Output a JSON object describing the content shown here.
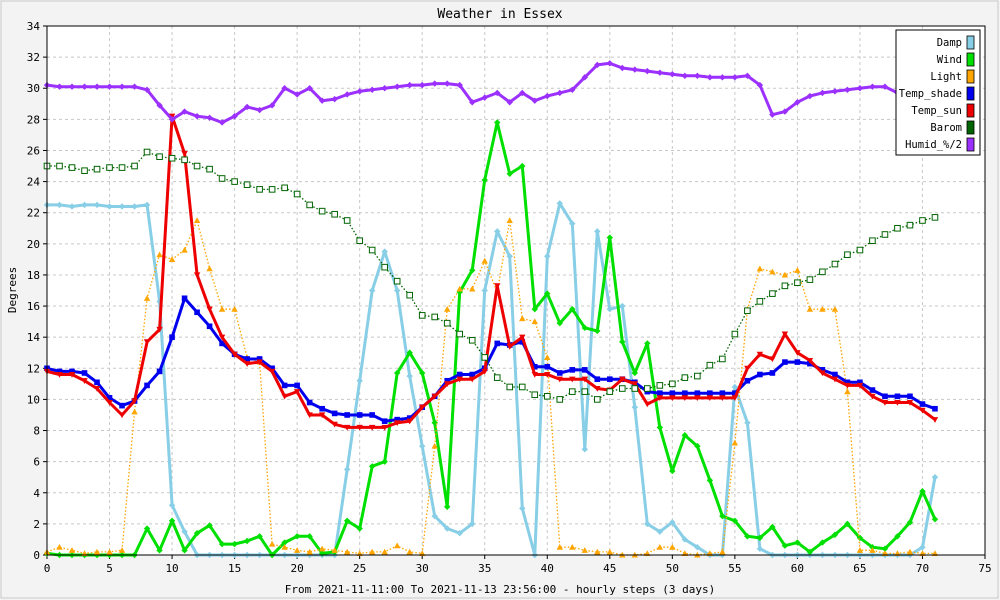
{
  "chart_data": {
    "type": "line",
    "title": "Weather in Essex",
    "xlabel": "From 2021-11-11:00 To 2021-11-13 23:56:00 - hourly steps (3 days)",
    "ylabel": "Degrees",
    "xlim": [
      0,
      75
    ],
    "ylim": [
      0,
      34
    ],
    "xticks": [
      0,
      5,
      10,
      15,
      20,
      25,
      30,
      35,
      40,
      45,
      50,
      55,
      60,
      65,
      70,
      75
    ],
    "yticks": [
      0,
      2,
      4,
      6,
      8,
      10,
      12,
      14,
      16,
      18,
      20,
      22,
      24,
      26,
      28,
      30,
      32,
      34
    ],
    "grid": true,
    "legend_position": "top-right",
    "series": [
      {
        "name": "Damp",
        "color": "#87cee6",
        "style": "solid",
        "marker": "diamond",
        "values": [
          22.5,
          22.5,
          22.4,
          22.5,
          22.5,
          22.4,
          22.4,
          22.4,
          22.5,
          16.3,
          3.2,
          1.5,
          0,
          0,
          0,
          0,
          0,
          0,
          0,
          0,
          0,
          0,
          0,
          0,
          5.5,
          11.2,
          17,
          19.5,
          17,
          11.5,
          7,
          2.5,
          1.7,
          1.4,
          2,
          17,
          20.8,
          19.2,
          3,
          0,
          19.2,
          22.6,
          21.3,
          6.8,
          20.8,
          15.8,
          16,
          9.5,
          2,
          1.5,
          2.1,
          1,
          0.5,
          0,
          0,
          10.8,
          8.5,
          0.4,
          0,
          0,
          0,
          0,
          0,
          0,
          0,
          0,
          0,
          0,
          0,
          0,
          0.5,
          5
        ]
      },
      {
        "name": "Wind",
        "color": "#00e000",
        "style": "solid",
        "marker": "diamond",
        "values": [
          0.1,
          0,
          0,
          0,
          0,
          0,
          0,
          0,
          1.7,
          0.3,
          2.2,
          0.3,
          1.4,
          1.9,
          0.7,
          0.7,
          0.9,
          1.2,
          0,
          0.8,
          1.2,
          1.2,
          0.1,
          0.2,
          2.2,
          1.7,
          5.7,
          6,
          11.7,
          13,
          11.7,
          8.5,
          3.1,
          16.9,
          18.3,
          24.1,
          27.8,
          24.5,
          25,
          15.8,
          16.8,
          14.9,
          15.8,
          14.6,
          14.4,
          20.4,
          13.7,
          11.7,
          13.6,
          8.2,
          5.4,
          7.7,
          7,
          4.8,
          2.5,
          2.2,
          1.2,
          1.1,
          1.8,
          0.6,
          0.8,
          0.2,
          0.8,
          1.3,
          2,
          1.1,
          0.5,
          0.4,
          1.2,
          2.1,
          4.1,
          2.3
        ]
      },
      {
        "name": "Light",
        "color": "#ffa500",
        "style": "dotted",
        "marker": "triangle",
        "values": [
          0.2,
          0.5,
          0.3,
          0.1,
          0.2,
          0.2,
          0.3,
          9.2,
          16.5,
          19.3,
          19,
          19.6,
          21.5,
          18.4,
          15.8,
          15.8,
          12.7,
          12.4,
          0.7,
          0.5,
          0.3,
          0.2,
          0.4,
          0.3,
          0.2,
          0.1,
          0.2,
          0.2,
          0.6,
          0.2,
          0.1,
          7,
          15.8,
          17.1,
          17.1,
          18.9,
          16.9,
          21.5,
          15.2,
          15,
          12.7,
          0.5,
          0.5,
          0.3,
          0.2,
          0.2,
          0,
          0,
          0.1,
          0.5,
          0.5,
          0.1,
          0,
          0.1,
          0.2,
          7.2,
          15.8,
          18.4,
          18.2,
          18,
          18.3,
          15.8,
          15.8,
          15.8,
          10.5,
          0.3,
          0.3,
          0.1,
          0.1,
          0.2,
          0.1,
          0.1
        ]
      },
      {
        "name": "Temp_shade",
        "color": "#0000ee",
        "style": "solid",
        "marker": "square",
        "values": [
          12,
          11.8,
          11.8,
          11.7,
          11.1,
          10.1,
          9.6,
          9.9,
          10.9,
          11.8,
          14,
          16.5,
          15.6,
          14.7,
          13.6,
          12.9,
          12.6,
          12.6,
          12,
          10.9,
          10.9,
          9.8,
          9.4,
          9.1,
          9,
          9,
          9,
          8.6,
          8.7,
          8.8,
          9.5,
          10.2,
          11.2,
          11.6,
          11.6,
          12,
          13.6,
          13.5,
          13.7,
          12.1,
          12.1,
          11.7,
          11.9,
          11.9,
          11.3,
          11.3,
          11.3,
          11.1,
          10.5,
          10.4,
          10.4,
          10.4,
          10.4,
          10.4,
          10.4,
          10.4,
          11.2,
          11.6,
          11.7,
          12.4,
          12.4,
          12.3,
          11.9,
          11.6,
          11.1,
          11.1,
          10.6,
          10.2,
          10.2,
          10.2,
          9.7,
          9.4
        ]
      },
      {
        "name": "Temp_sun",
        "color": "#ee0000",
        "style": "solid",
        "marker": "triangle-down",
        "values": [
          11.8,
          11.6,
          11.6,
          11.2,
          10.7,
          9.8,
          9,
          9.9,
          13.7,
          14.5,
          28.2,
          25.8,
          18,
          15.8,
          14,
          12.9,
          12.3,
          12.4,
          11.8,
          10.2,
          10.5,
          9,
          9,
          8.4,
          8.2,
          8.2,
          8.2,
          8.2,
          8.5,
          8.6,
          9.5,
          10.2,
          11,
          11.3,
          11.3,
          11.8,
          17.3,
          13.4,
          14,
          11.6,
          11.6,
          11.3,
          11.3,
          11.3,
          10.7,
          10.6,
          11.3,
          11,
          9.7,
          10.1,
          10.1,
          10.1,
          10.1,
          10.1,
          10.1,
          10.1,
          12,
          12.9,
          12.6,
          14.2,
          13,
          12.5,
          11.7,
          11.3,
          10.9,
          10.9,
          10.2,
          9.8,
          9.8,
          9.8,
          9.3,
          8.7
        ]
      },
      {
        "name": "Barom",
        "color": "#006400",
        "style": "dotted",
        "marker": "square-open",
        "values": [
          25,
          25,
          24.9,
          24.7,
          24.8,
          24.9,
          24.9,
          25,
          25.9,
          25.6,
          25.5,
          25.4,
          25,
          24.8,
          24.2,
          24,
          23.8,
          23.5,
          23.5,
          23.6,
          23.2,
          22.5,
          22.1,
          21.9,
          21.5,
          20.2,
          19.6,
          18.5,
          17.6,
          16.7,
          15.4,
          15.3,
          14.9,
          14.2,
          13.8,
          12.7,
          11.4,
          10.8,
          10.8,
          10.3,
          10.2,
          10,
          10.5,
          10.5,
          10,
          10.5,
          10.7,
          10.7,
          10.7,
          10.9,
          11,
          11.4,
          11.5,
          12.2,
          12.6,
          14.2,
          15.7,
          16.3,
          16.8,
          17.3,
          17.5,
          17.7,
          18.2,
          18.7,
          19.3,
          19.6,
          20.2,
          20.6,
          21,
          21.2,
          21.5,
          21.7
        ]
      },
      {
        "name": "Humid_%/2",
        "color": "#9b30ff",
        "style": "solid",
        "marker": "diamond",
        "values": [
          30.2,
          30.1,
          30.1,
          30.1,
          30.1,
          30.1,
          30.1,
          30.1,
          29.9,
          28.9,
          28,
          28.5,
          28.2,
          28.1,
          27.8,
          28.2,
          28.8,
          28.6,
          28.9,
          30,
          29.6,
          30,
          29.2,
          29.3,
          29.6,
          29.8,
          29.9,
          30,
          30.1,
          30.2,
          30.2,
          30.3,
          30.3,
          30.2,
          29.1,
          29.4,
          29.7,
          29.1,
          29.7,
          29.2,
          29.5,
          29.7,
          29.9,
          30.7,
          31.5,
          31.6,
          31.3,
          31.2,
          31.1,
          31,
          30.9,
          30.8,
          30.8,
          30.7,
          30.7,
          30.7,
          30.8,
          30.2,
          28.3,
          28.5,
          29.1,
          29.5,
          29.7,
          29.8,
          29.9,
          30,
          30.1,
          30.1,
          29.7,
          29.2,
          29.1,
          29
        ]
      }
    ]
  }
}
